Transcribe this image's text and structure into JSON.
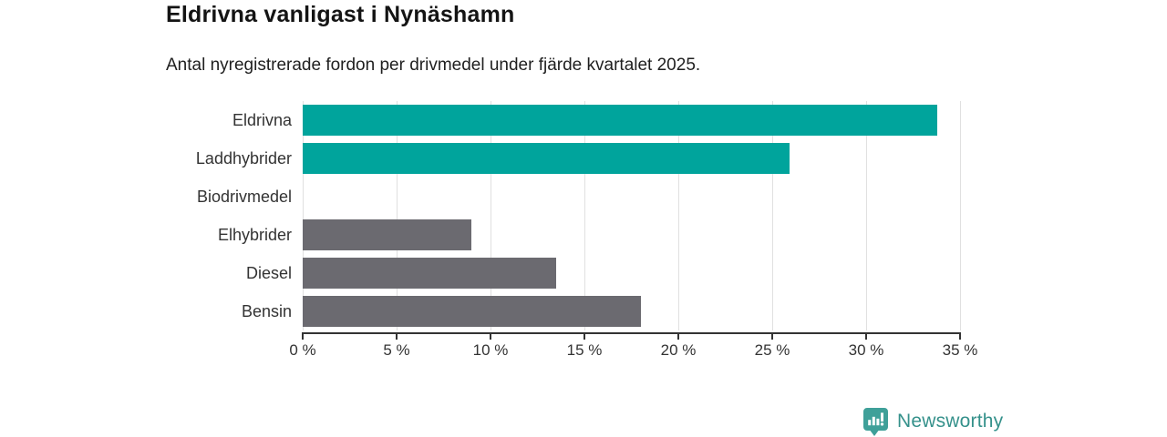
{
  "title": "Eldrivna vanligast i Nynäshamn",
  "subtitle": "Antal nyregistrerade fordon per drivmedel under fjärde kvartalet 2025.",
  "chart_data": {
    "type": "bar",
    "orientation": "horizontal",
    "title": "Eldrivna vanligast i Nynäshamn",
    "subtitle": "Antal nyregistrerade fordon per drivmedel under fjärde kvartalet 2025.",
    "categories": [
      "Eldrivna",
      "Laddhybrider",
      "Biodrivmedel",
      "Elhybrider",
      "Diesel",
      "Bensin"
    ],
    "values": [
      33.8,
      25.9,
      0,
      9.0,
      13.5,
      18.0
    ],
    "bar_colors": [
      "#00a49c",
      "#00a49c",
      "#00a49c",
      "#6b6a70",
      "#6b6a70",
      "#6b6a70"
    ],
    "unit": "%",
    "xlabel": "",
    "ylabel": "",
    "xlim": [
      0,
      35
    ],
    "ticks": [
      0,
      5,
      10,
      15,
      20,
      25,
      30,
      35
    ],
    "tick_labels": [
      "0 %",
      "5 %",
      "10 %",
      "15 %",
      "20 %",
      "25 %",
      "30 %",
      "35 %"
    ],
    "grid": "vertical-light",
    "legend": "none"
  },
  "colors": {
    "accent_teal": "#00a49c",
    "neutral_gray": "#6b6a70",
    "gridline": "#e0e0e0",
    "axis": "#333333",
    "logo_teal": "#3fa099",
    "logo_text_teal": "#35918b"
  },
  "logo": {
    "text": "Newsworthy",
    "icon": "newsworthy-chart-pin-icon"
  }
}
